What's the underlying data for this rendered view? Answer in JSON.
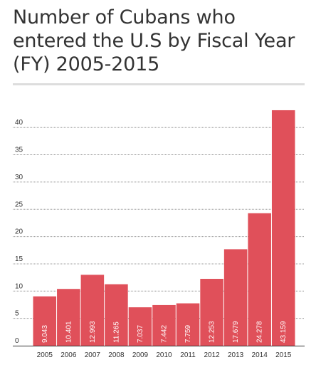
{
  "chart_data": {
    "type": "bar",
    "title": "Number of Cubans who entered the U.S by Fiscal Year (FY) 2005-2015",
    "xlabel": "",
    "ylabel": "",
    "categories": [
      "2005",
      "2006",
      "2007",
      "2008",
      "2009",
      "2010",
      "2011",
      "2012",
      "2013",
      "2014",
      "2015"
    ],
    "values": [
      9.043,
      10.401,
      12.993,
      11.265,
      7.037,
      7.442,
      7.759,
      12.253,
      17.679,
      24.278,
      43.159
    ],
    "value_labels": [
      "9.043",
      "10.401",
      "12.993",
      "11.265",
      "7.037",
      "7.442",
      "7.759",
      "12.253",
      "17.679",
      "24.278",
      "43.159"
    ],
    "yticks": [
      "0",
      "5",
      "10",
      "15",
      "20",
      "25",
      "30",
      "35",
      "40"
    ],
    "ylim": [
      0,
      45
    ],
    "grid": true,
    "legend": "none",
    "colors": {
      "bar": "#e0505a",
      "grid": "#999999",
      "axis": "#333333"
    }
  }
}
